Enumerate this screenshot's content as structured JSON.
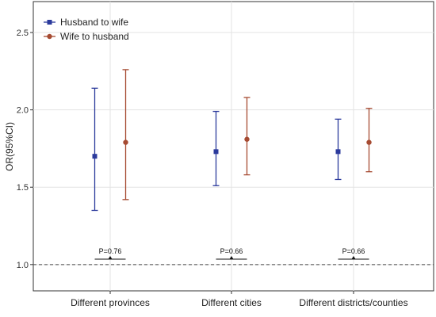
{
  "chart_data": {
    "type": "errorbar",
    "ylabel": "OR(95%CI)",
    "xlabel": "",
    "ylim": [
      0.83,
      2.7
    ],
    "yticks": [
      1.0,
      1.5,
      2.0,
      2.5
    ],
    "ytick_labels": [
      "1.0",
      "1.5",
      "2.0",
      "2.5"
    ],
    "reference_line": 1.0,
    "grid": true,
    "legend_position": "top-left",
    "categories": [
      "Different provinces",
      "Different cities",
      "Different districts/counties"
    ],
    "series": [
      {
        "name": "Husband to wife",
        "color": "#2b3a9c",
        "marker": "square",
        "estimate": [
          1.7,
          1.73,
          1.73
        ],
        "lower": [
          1.35,
          1.51,
          1.55
        ],
        "upper": [
          2.14,
          1.99,
          1.94
        ]
      },
      {
        "name": "Wife to husband",
        "color": "#a64b32",
        "marker": "circle",
        "estimate": [
          1.79,
          1.81,
          1.79
        ],
        "lower": [
          1.42,
          1.58,
          1.6
        ],
        "upper": [
          2.26,
          2.08,
          2.01
        ]
      }
    ],
    "annotations": [
      "P=0.76",
      "P=0.66",
      "P=0.66"
    ]
  }
}
